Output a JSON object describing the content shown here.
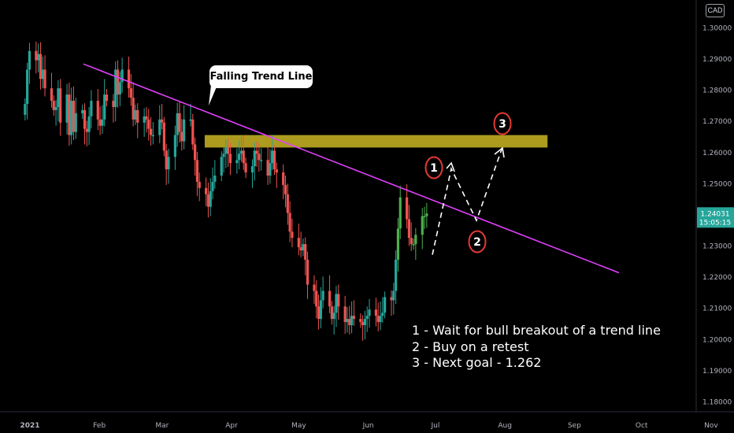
{
  "currency_button": "CAD",
  "callout_text": "Falling Trend Line",
  "notes": [
    "1 - Wait for bull breakout of a trend line",
    "2 - Buy on a retest",
    "3 - Next goal - 1.262"
  ],
  "markers": [
    "1",
    "2",
    "3"
  ],
  "price_label": {
    "price": "1.24031",
    "countdown": "15:05:15",
    "bg": "#26a69a"
  },
  "colors": {
    "up": "#26a69a",
    "down": "#ef5350",
    "upRecent": "#4caf50",
    "trend": "#e040fb",
    "zone": "#b5a320",
    "marker": "#e53935"
  },
  "chart_data": {
    "type": "candlestick",
    "instrument_quote": "CAD",
    "x_ticks": [
      "2021",
      "Feb",
      "Mar",
      "Apr",
      "May",
      "Jun",
      "Jul",
      "Aug",
      "Sep",
      "Oct",
      "Nov"
    ],
    "y_ticks": [
      "1.30000",
      "1.29000",
      "1.28000",
      "1.27000",
      "1.26000",
      "1.25000",
      "1.24000",
      "1.23000",
      "1.22000",
      "1.21000",
      "1.20000",
      "1.19000",
      "1.18000"
    ],
    "ylim": [
      1.1734,
      1.3075
    ],
    "last_price": 1.24031,
    "closes": [
      1.2755,
      1.2865,
      1.2925,
      1.2895,
      1.2915,
      1.2835,
      1.2865,
      1.2805,
      1.2765,
      1.2735,
      1.2745,
      1.2805,
      1.2695,
      1.2785,
      1.2655,
      1.2765,
      1.2665,
      1.2725,
      1.2735,
      1.2675,
      1.2665,
      1.2715,
      1.2765,
      1.2705,
      1.2685,
      1.2705,
      1.2785,
      1.2765,
      1.2745,
      1.2865,
      1.2785,
      1.2825,
      1.2865,
      1.2805,
      1.2775,
      1.2705,
      1.2735,
      1.2695,
      1.2715,
      1.2705,
      1.2675,
      1.2655,
      1.2655,
      1.2705,
      1.2695,
      1.2605,
      1.2545,
      1.2585,
      1.2655,
      1.2725,
      1.2665,
      1.2635,
      1.2705,
      1.2705,
      1.2625,
      1.2575,
      1.2505,
      1.2485,
      1.2465,
      1.2425,
      1.2475,
      1.2505,
      1.2525,
      1.2585,
      1.2595,
      1.2615,
      1.2595,
      1.2565,
      1.2575,
      1.2595,
      1.2605,
      1.2565,
      1.2535,
      1.2555,
      1.2605,
      1.2595,
      1.2575,
      1.2575,
      1.2525,
      1.2565,
      1.2605,
      1.2545,
      1.2535,
      1.2495,
      1.2465,
      1.2405,
      1.2345,
      1.2325,
      1.2295,
      1.2285,
      1.2305,
      1.2255,
      1.2175,
      1.2155,
      1.2105,
      1.2065,
      1.2125,
      1.2155,
      1.2105,
      1.2065,
      1.2085,
      1.2145,
      1.2105,
      1.2055,
      1.2065,
      1.2045,
      1.2075,
      1.2065,
      1.2055,
      1.2045,
      1.2065,
      1.2075,
      1.2095,
      1.2075,
      1.2055,
      1.2075,
      1.2085,
      1.2135,
      1.2125,
      1.2155,
      1.2255,
      1.2355,
      1.2455,
      1.2385,
      1.2325,
      1.2305,
      1.2305,
      1.2335,
      1.2395,
      1.2395,
      1.24031
    ],
    "trend_line": {
      "from": {
        "x": "Jan 28",
        "y": 1.2883
      },
      "to": {
        "x": "Aug 29",
        "y": 1.2213
      }
    },
    "resistance_zone": [
      1.2615,
      1.2655
    ],
    "projection": [
      1.2271,
      1.2547,
      1.2381,
      1.2616
    ]
  }
}
